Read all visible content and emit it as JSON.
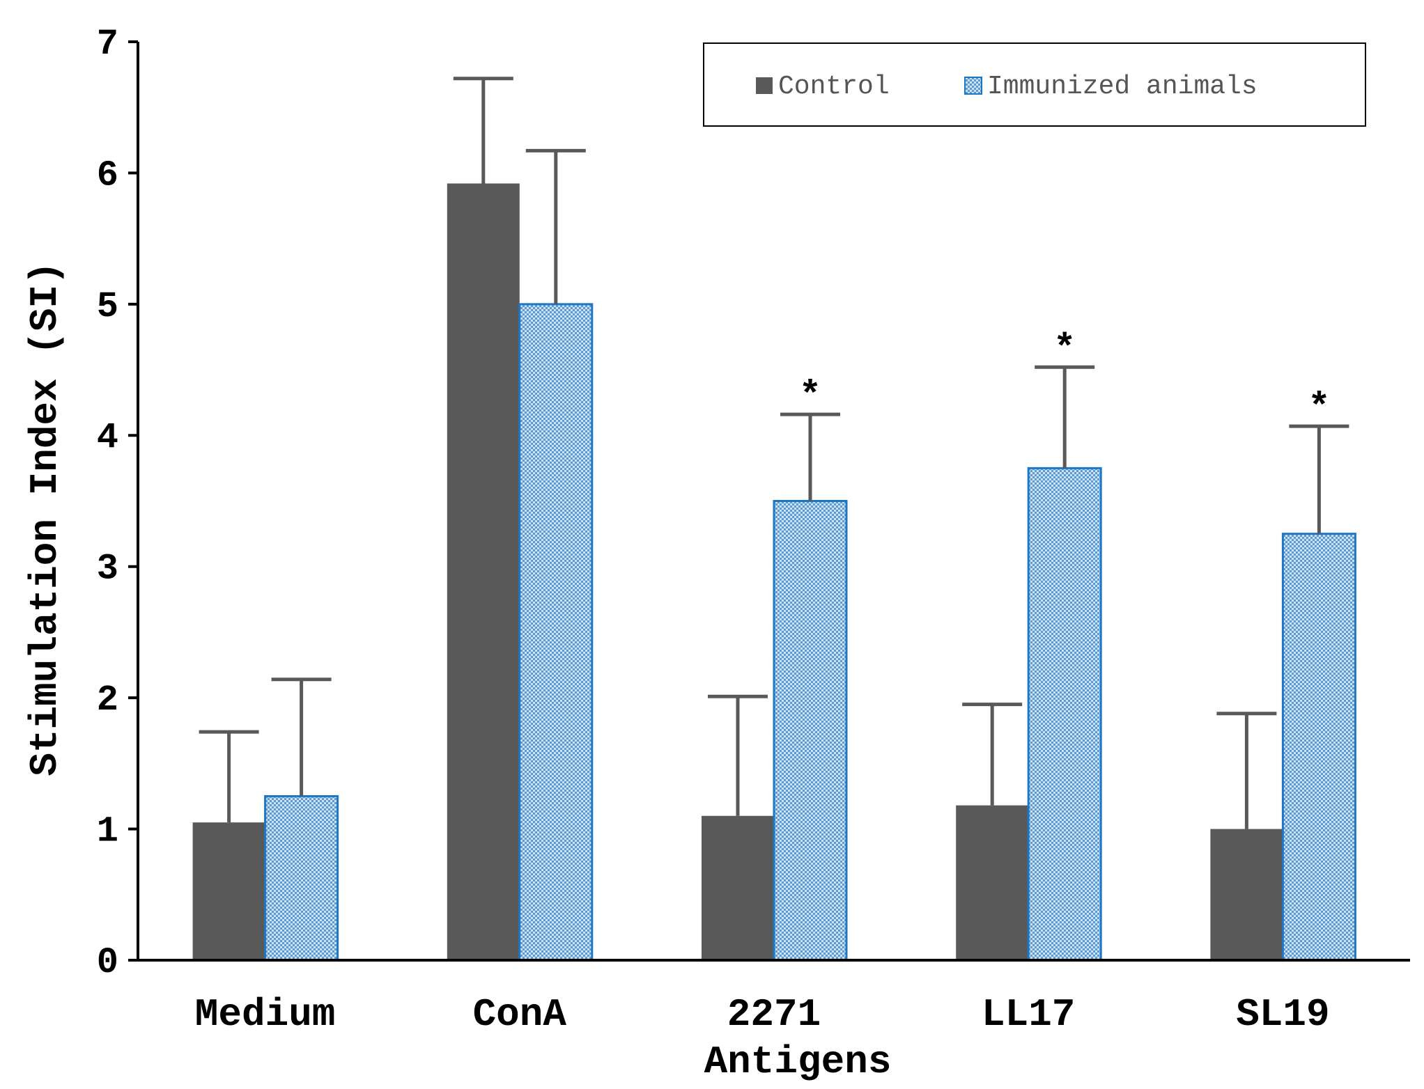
{
  "chart_data": {
    "type": "bar",
    "title": "",
    "xlabel": "Antigens",
    "ylabel": "Stimulation Index (SI)",
    "ylim": [
      0,
      7
    ],
    "yticks": [
      "0",
      "1",
      "2",
      "3",
      "4",
      "5",
      "6",
      "7"
    ],
    "categories": [
      "Medium",
      "ConA",
      "2271",
      "LL17",
      "SL19"
    ],
    "series": [
      {
        "name": "Control",
        "color": "#595959",
        "values": [
          1.05,
          5.92,
          1.1,
          1.18,
          1.0
        ],
        "error_upper": [
          1.74,
          6.72,
          2.01,
          1.95,
          1.88
        ]
      },
      {
        "name": "Immunized animals",
        "color": "#b7d3ec",
        "edge_color": "#1f77c4",
        "values": [
          1.25,
          5.0,
          3.5,
          3.75,
          3.25
        ],
        "error_upper": [
          2.14,
          6.17,
          4.16,
          4.52,
          4.07
        ]
      }
    ],
    "significance": [
      "",
      "",
      "*",
      "*",
      "*"
    ],
    "legend": {
      "position": "top-right",
      "labels": [
        "Control",
        "Immunized animals"
      ]
    }
  }
}
